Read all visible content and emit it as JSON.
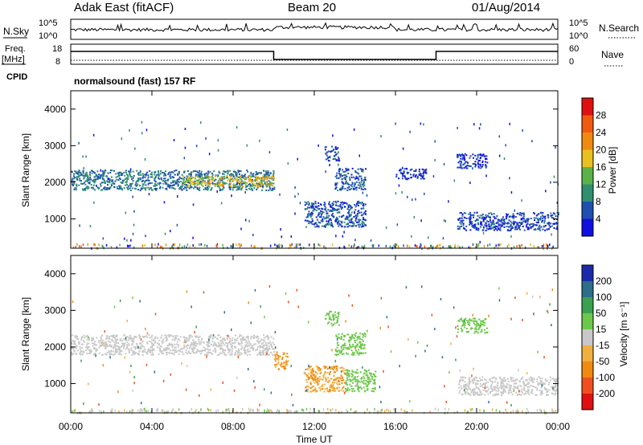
{
  "header": {
    "station": "Adak East (fitACF)",
    "beam": "Beam 20",
    "date": "01/Aug/2014"
  },
  "noise_panel": {
    "left_label": "N.Sky",
    "right_label": "N.Search",
    "ticks": [
      "10^5",
      "10^0"
    ]
  },
  "freq_panel": {
    "left_label_1": "Freq.",
    "left_label_2": "[MHz]",
    "ticks_left": [
      "18",
      "8"
    ],
    "right_label": "Nave",
    "ticks_right": [
      "60",
      "0"
    ],
    "cpid_label": "CPID",
    "cpid_text": "normalsound (fast) 157 RF",
    "frequency_steps": [
      {
        "from_hour": 0,
        "to_hour": 10,
        "level": "high"
      },
      {
        "from_hour": 10,
        "to_hour": 18,
        "level": "low"
      },
      {
        "from_hour": 18,
        "to_hour": 24,
        "level": "high"
      }
    ]
  },
  "power_panel": {
    "ylabel": "Slant Range [km]",
    "yticks": [
      "1000",
      "2000",
      "3000",
      "4000"
    ],
    "colorbar_label": "Power [dB]",
    "colorbar_ticks": [
      "4",
      "8",
      "12",
      "16",
      "20",
      "24",
      "28"
    ],
    "colorbar_colors": [
      "#1010e0",
      "#1e50b0",
      "#2f8f6f",
      "#5ab34a",
      "#e8c020",
      "#f08a10",
      "#f05a10",
      "#e01010"
    ]
  },
  "velocity_panel": {
    "ylabel": "Slant Range [km]",
    "yticks": [
      "1000",
      "2000",
      "3000",
      "4000"
    ],
    "colorbar_label": "Velocity [m s⁻¹]",
    "colorbar_ticks": [
      "200",
      "100",
      "50",
      "15",
      "-15",
      "-50",
      "-100",
      "-200"
    ],
    "colorbar_colors": [
      "#1a2aa8",
      "#2d6e8a",
      "#3aa052",
      "#6cc84a",
      "#c8c8c8",
      "#f0b040",
      "#f08a10",
      "#f05020",
      "#e01010"
    ]
  },
  "x_axis": {
    "ticks": [
      "00:00",
      "04:00",
      "08:00",
      "12:00",
      "16:00",
      "20:00",
      "00:00"
    ],
    "label": "Time UT"
  },
  "chart_data": {
    "type": "heatmap",
    "x_units": "hours UT",
    "xlim": [
      0,
      24
    ],
    "ylim": [
      200,
      4500
    ],
    "power_regions": [
      {
        "t0": 0.0,
        "t1": 10.0,
        "r0": 1800,
        "r1": 2350,
        "level": 8
      },
      {
        "t0": 5.5,
        "t1": 10.0,
        "r0": 1900,
        "r1": 2200,
        "level": 18
      },
      {
        "t0": 11.5,
        "t1": 14.5,
        "r0": 800,
        "r1": 1500,
        "level": 6
      },
      {
        "t0": 12.5,
        "t1": 13.2,
        "r0": 2600,
        "r1": 3000,
        "level": 5
      },
      {
        "t0": 13.0,
        "t1": 14.5,
        "r0": 1800,
        "r1": 2400,
        "level": 6
      },
      {
        "t0": 16.0,
        "t1": 17.5,
        "r0": 2100,
        "r1": 2400,
        "level": 4
      },
      {
        "t0": 19.0,
        "t1": 20.5,
        "r0": 2400,
        "r1": 2800,
        "level": 4
      },
      {
        "t0": 19.0,
        "t1": 24.0,
        "r0": 700,
        "r1": 1200,
        "level": 5
      }
    ],
    "velocity_regions": [
      {
        "t0": 0.0,
        "t1": 10.0,
        "r0": 1800,
        "r1": 2350,
        "velocity": 0
      },
      {
        "t0": 10.0,
        "t1": 10.7,
        "r0": 1400,
        "r1": 1900,
        "velocity": -50
      },
      {
        "t0": 11.5,
        "t1": 13.5,
        "r0": 800,
        "r1": 1500,
        "velocity": -50
      },
      {
        "t0": 13.5,
        "t1": 15.0,
        "r0": 800,
        "r1": 1400,
        "velocity": 30
      },
      {
        "t0": 12.5,
        "t1": 13.2,
        "r0": 2600,
        "r1": 3000,
        "velocity": 30
      },
      {
        "t0": 13.0,
        "t1": 14.5,
        "r0": 1800,
        "r1": 2400,
        "velocity": 30
      },
      {
        "t0": 19.0,
        "t1": 20.5,
        "r0": 2400,
        "r1": 2800,
        "velocity": 30
      },
      {
        "t0": 19.0,
        "t1": 24.0,
        "r0": 700,
        "r1": 1200,
        "velocity": 0
      }
    ]
  }
}
